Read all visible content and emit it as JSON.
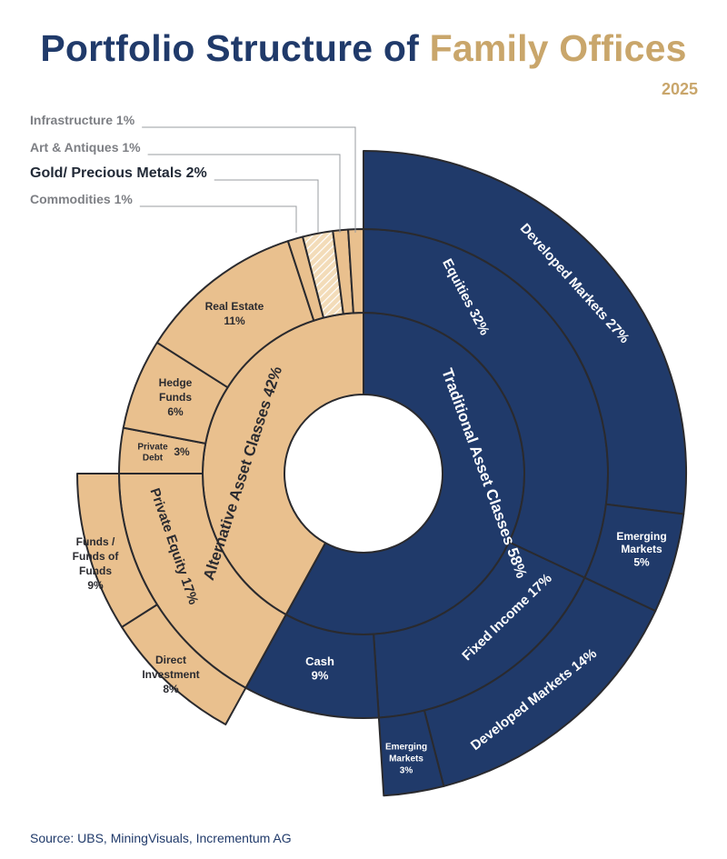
{
  "header": {
    "title_main": "Portfolio Structure of ",
    "title_accent": "Family Offices",
    "year": "2025"
  },
  "footer": {
    "source": "Source: UBS, MiningVisuals, Incrementum AG"
  },
  "colors": {
    "navy": "#203a6a",
    "gold": "#e9c08e",
    "stroke": "#2a2a2e",
    "title_navy": "#203a6a",
    "title_gold": "#c9a66b"
  },
  "chart_data": {
    "type": "sunburst",
    "unit": "%",
    "groups": [
      {
        "name": "Traditional Asset Classes",
        "value": 58,
        "label": "Traditional Asset Classes 58%",
        "children": [
          {
            "name": "Equities",
            "value": 32,
            "label": "Equities 32%",
            "children": [
              {
                "name": "Developed Markets",
                "value": 27,
                "label": "Developed Markets 27%"
              },
              {
                "name": "Emerging Markets",
                "value": 5,
                "label": "Emerging Markets 5%"
              }
            ]
          },
          {
            "name": "Fixed Income",
            "value": 17,
            "label": "Fixed Income 17%",
            "children": [
              {
                "name": "Developed Markets",
                "value": 14,
                "label": "Developed Markets 14%"
              },
              {
                "name": "Emerging Markets",
                "value": 3,
                "label": "Emerging Markets 3%"
              }
            ]
          },
          {
            "name": "Cash",
            "value": 9,
            "label": "Cash 9%",
            "children": []
          }
        ]
      },
      {
        "name": "Alternative Asset Classes",
        "value": 42,
        "label": "Alternative Asset Classes 42%",
        "children": [
          {
            "name": "Private Equity",
            "value": 17,
            "label": "Private Equity 17%",
            "children": [
              {
                "name": "Direct Investment",
                "value": 8,
                "label": "Direct Investment 8%"
              },
              {
                "name": "Funds / Funds of Funds",
                "value": 9,
                "label": "Funds / Funds of Funds 9%"
              }
            ]
          },
          {
            "name": "Private Debt",
            "value": 3,
            "label": "Private Debt 3%",
            "children": []
          },
          {
            "name": "Hedge Funds",
            "value": 6,
            "label": "Hedge Funds 6%",
            "children": []
          },
          {
            "name": "Real Estate",
            "value": 11,
            "label": "Real Estate 11%",
            "children": []
          },
          {
            "name": "Commodities",
            "value": 1,
            "label": "Commodities 1%",
            "children": []
          },
          {
            "name": "Gold/Precious Metals",
            "value": 2,
            "label": "Gold/Precious Metals 2%",
            "children": []
          },
          {
            "name": "Art & Antiques",
            "value": 1,
            "label": "Art & Antiques 1%",
            "children": []
          },
          {
            "name": "Infrastructure",
            "value": 1,
            "label": "Infrastructure 1%",
            "children": []
          }
        ]
      }
    ],
    "callouts": [
      {
        "text": "Infrastructure 1%",
        "target": "Infrastructure",
        "emphasis": false
      },
      {
        "text": "Art & Antiques 1%",
        "target": "Art & Antiques",
        "emphasis": false
      },
      {
        "text": "Gold/ Precious Metals 2%",
        "target": "Gold/Precious Metals",
        "emphasis": true
      },
      {
        "text": "Commodities 1%",
        "target": "Commodities",
        "emphasis": false
      }
    ]
  }
}
